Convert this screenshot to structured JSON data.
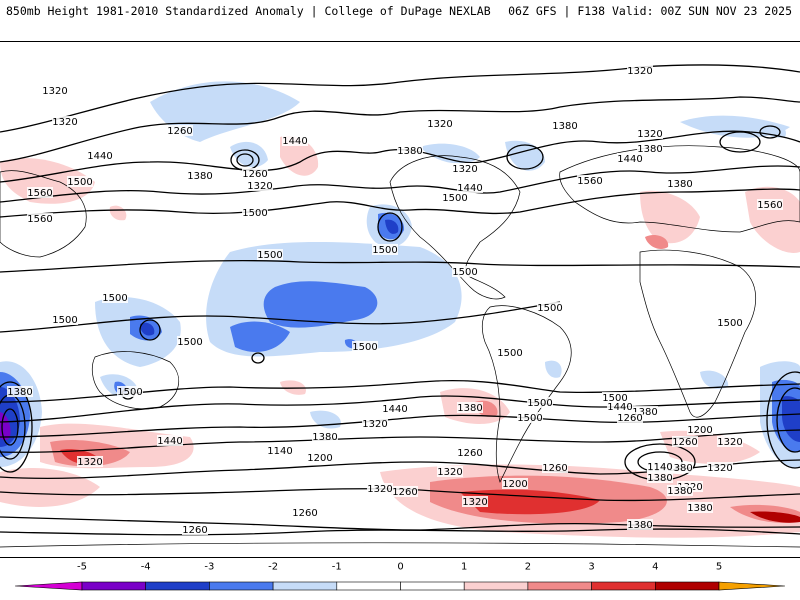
{
  "header": {
    "left": "850mb Height 1981-2010 Standardized Anomaly | College of DuPage NEXLAB",
    "right": "06Z GFS | F138 Valid: 00Z SUN NOV 23 2025"
  },
  "colors": {
    "neg5": "#d400d4",
    "neg4": "#7a00c8",
    "neg3": "#1f3fc8",
    "neg2": "#4a7aee",
    "neg1": "#c6dcf8",
    "zero": "#ffffff",
    "pos1": "#fbd0d0",
    "pos2": "#f08a8a",
    "pos3": "#e03030",
    "pos4": "#b00000",
    "pos5": "#f5a000"
  },
  "colorbar": {
    "ticks": [
      "-5",
      "-4",
      "-3",
      "-2",
      "-1",
      "0",
      "1",
      "2",
      "3",
      "4",
      "5"
    ]
  },
  "contour_labels": [
    {
      "text": "1320"
    },
    {
      "text": "1320"
    },
    {
      "text": "1320"
    },
    {
      "text": "1320"
    },
    {
      "text": "1260"
    },
    {
      "text": "1440"
    },
    {
      "text": "1380"
    },
    {
      "text": "1260"
    },
    {
      "text": "1320"
    },
    {
      "text": "1380"
    },
    {
      "text": "1320"
    },
    {
      "text": "1440"
    },
    {
      "text": "1500"
    },
    {
      "text": "1380"
    },
    {
      "text": "1440"
    },
    {
      "text": "1500"
    },
    {
      "text": "1560"
    },
    {
      "text": "1380"
    },
    {
      "text": "1320"
    },
    {
      "text": "1380"
    },
    {
      "text": "1440"
    },
    {
      "text": "1560"
    },
    {
      "text": "1500"
    },
    {
      "text": "1560"
    },
    {
      "text": "1560"
    },
    {
      "text": "1500"
    },
    {
      "text": "1500"
    },
    {
      "text": "1500"
    },
    {
      "text": "1500"
    },
    {
      "text": "1500"
    },
    {
      "text": "1500"
    },
    {
      "text": "1500"
    },
    {
      "text": "1500"
    },
    {
      "text": "1500"
    },
    {
      "text": "1500"
    },
    {
      "text": "1500"
    },
    {
      "text": "1500"
    },
    {
      "text": "1500"
    },
    {
      "text": "1380"
    },
    {
      "text": "1380"
    },
    {
      "text": "1440"
    },
    {
      "text": "1440"
    },
    {
      "text": "1320"
    },
    {
      "text": "1380"
    },
    {
      "text": "1320"
    },
    {
      "text": "1260"
    },
    {
      "text": "1140"
    },
    {
      "text": "1200"
    },
    {
      "text": "1320"
    },
    {
      "text": "1260"
    },
    {
      "text": "1320"
    },
    {
      "text": "1260"
    },
    {
      "text": "1200"
    },
    {
      "text": "1140"
    },
    {
      "text": "1320"
    },
    {
      "text": "1260"
    },
    {
      "text": "1320"
    },
    {
      "text": "1260"
    },
    {
      "text": "1380"
    },
    {
      "text": "1320"
    },
    {
      "text": "1380"
    },
    {
      "text": "1500"
    },
    {
      "text": "1440"
    },
    {
      "text": "1380"
    },
    {
      "text": "1320"
    },
    {
      "text": "1260"
    },
    {
      "text": "1200"
    },
    {
      "text": "1140"
    },
    {
      "text": "1260"
    },
    {
      "text": "1380"
    },
    {
      "text": "1380"
    },
    {
      "text": "1380"
    }
  ]
}
